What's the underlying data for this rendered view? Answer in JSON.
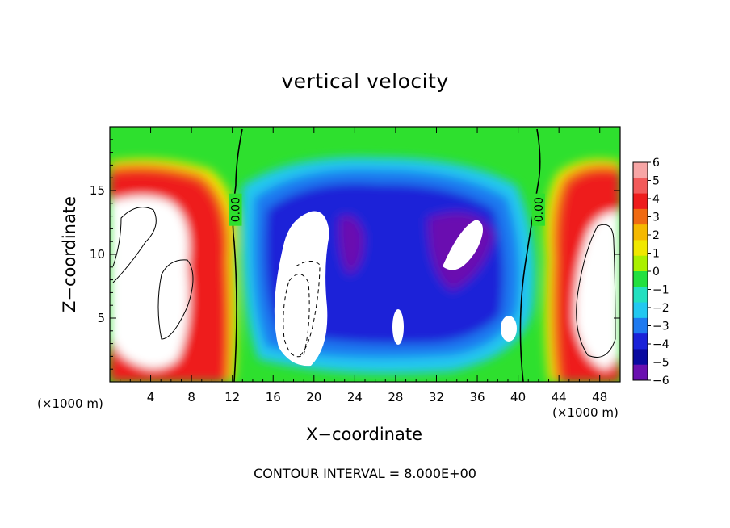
{
  "chart_data": {
    "type": "heatmap",
    "title": "vertical velocity",
    "xlabel": "X−coordinate",
    "ylabel": "Z−coordinate",
    "x_unit_label": "(×1000 m)",
    "x_ticks": [
      4,
      8,
      12,
      16,
      20,
      24,
      28,
      32,
      36,
      40,
      44,
      48
    ],
    "y_ticks": [
      5,
      10,
      15
    ],
    "xlim": [
      0,
      50
    ],
    "ylim": [
      0,
      20
    ],
    "colorbar": {
      "levels": [
        6,
        5,
        4,
        3,
        2,
        1,
        0,
        -1,
        -2,
        -3,
        -4,
        -5,
        -6
      ],
      "labels": [
        "6",
        "5",
        "4",
        "3",
        "2",
        "1",
        "0",
        "−1",
        "−2",
        "−3",
        "−4",
        "−5",
        "−6"
      ],
      "colors": [
        "#f7a5a5",
        "#f25a5a",
        "#ee1c1c",
        "#f06a12",
        "#f5b800",
        "#f0e800",
        "#aaf000",
        "#22e040",
        "#22e0c0",
        "#22c8f0",
        "#1e7af0",
        "#1a22d8",
        "#0a0aa0",
        "#6a10b0"
      ]
    },
    "contour_labels": [
      {
        "text": "0.00",
        "x": 12.3,
        "y": 13.5
      },
      {
        "text": "0.00",
        "x": 42.0,
        "y": 13.5
      }
    ],
    "contour_interval_text": "CONTOUR INTERVAL = 8.000E+00",
    "features": [
      {
        "kind": "updraft",
        "x_range": [
          0,
          12.5
        ],
        "z_range": [
          0,
          17
        ],
        "peak": 6
      },
      {
        "kind": "updraft",
        "x_range": [
          42,
          50
        ],
        "z_range": [
          0,
          17
        ],
        "peak": 6
      },
      {
        "kind": "downdraft",
        "x_range": [
          13,
          40
        ],
        "z_range": [
          1,
          17
        ],
        "peak": -6
      },
      {
        "kind": "near-zero",
        "x_range": [
          0,
          50
        ],
        "z_range": [
          17,
          20
        ],
        "value": 0
      }
    ]
  }
}
